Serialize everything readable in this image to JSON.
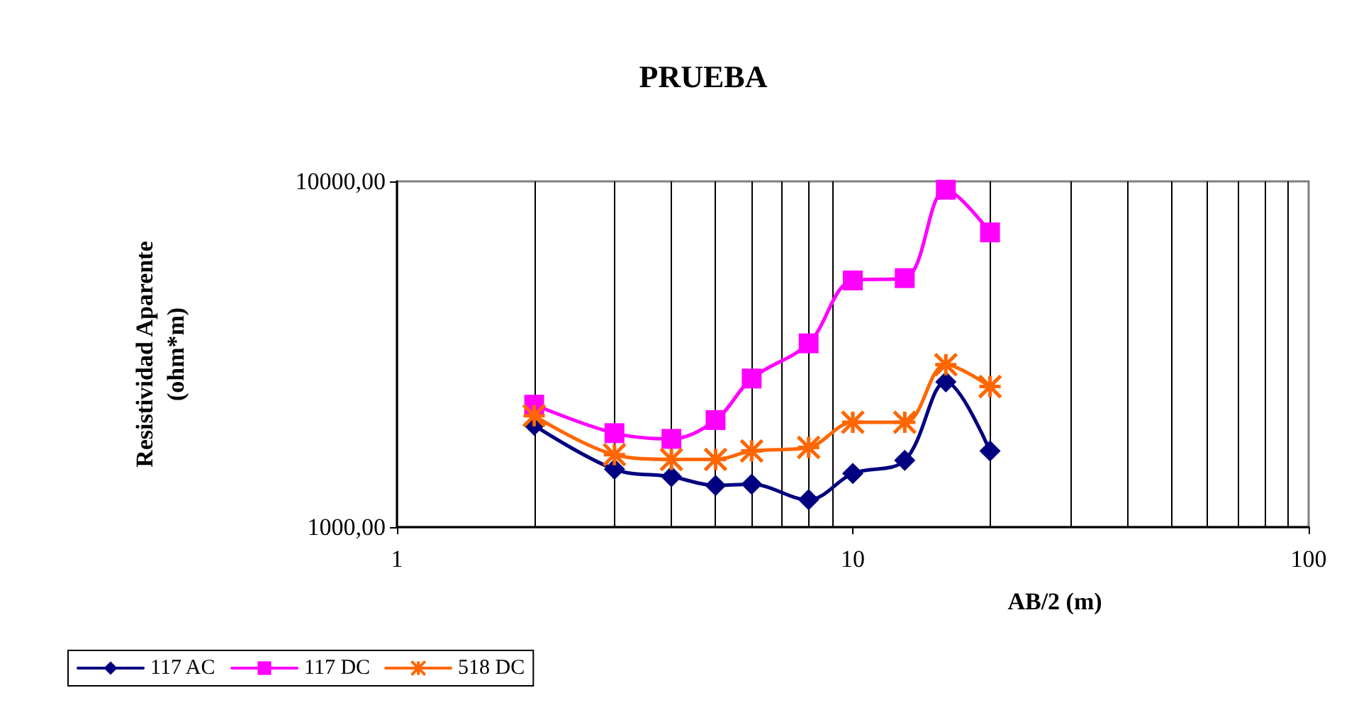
{
  "chart_data": {
    "type": "line",
    "title": "PRUEBA",
    "xlabel": "AB/2 (m)",
    "ylabel": "Resistividad Aparente\n(ohm*m)",
    "x": [
      2,
      3,
      4,
      5,
      6,
      8,
      10,
      13,
      16,
      20
    ],
    "series": [
      {
        "name": "117 AC",
        "color": "#000080",
        "marker": "diamond",
        "values": [
          1970,
          1470,
          1400,
          1320,
          1330,
          1200,
          1430,
          1560,
          2630,
          1660
        ]
      },
      {
        "name": "117 DC",
        "color": "#ff00ff",
        "marker": "square",
        "values": [
          2260,
          1870,
          1800,
          2040,
          2690,
          3400,
          5170,
          5250,
          9460,
          7120
        ]
      },
      {
        "name": "518 DC",
        "color": "#ff6600",
        "marker": "cross",
        "values": [
          2100,
          1620,
          1570,
          1570,
          1660,
          1700,
          2010,
          2010,
          2950,
          2550
        ]
      }
    ],
    "log": "xy",
    "xlim": [
      1,
      100
    ],
    "xticks": [
      1,
      10,
      100
    ],
    "ylim": [
      1000,
      10000
    ],
    "yticks": [
      {
        "value": 1000,
        "label": "1000,00"
      },
      {
        "value": 10000,
        "label": "10000,00"
      }
    ],
    "grid": "x",
    "legend": "bottom left"
  }
}
